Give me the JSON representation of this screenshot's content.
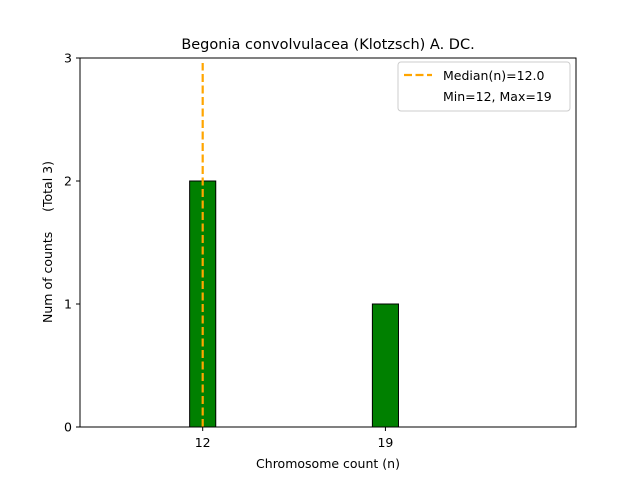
{
  "chart_data": {
    "type": "bar",
    "title": "Begonia convolvulacea (Klotzsch) A. DC.",
    "xlabel": "Chromosome count (n)",
    "ylabel": "Num of counts     (Total 3)",
    "x_values": [
      12,
      19
    ],
    "values": [
      2,
      1
    ],
    "bar_width": 1,
    "xlim": [
      7.3,
      26.3
    ],
    "ylim": [
      0,
      3
    ],
    "x_ticks": [
      12,
      19
    ],
    "y_ticks": [
      0,
      1,
      2,
      3
    ],
    "bar_color": "#008000",
    "bar_edge_color": "#000000",
    "grid": false,
    "median": {
      "value": 12.0,
      "color": "#ffa500",
      "style": "dashed"
    },
    "legend": {
      "placement": "top-right",
      "entries": [
        "Median(n)=12.0",
        "Min=12, Max=19"
      ]
    }
  }
}
